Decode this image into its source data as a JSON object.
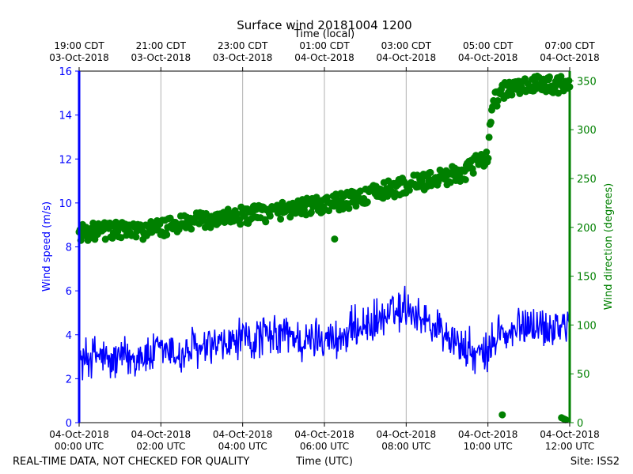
{
  "chart_data": {
    "type": "line",
    "title": "Surface wind 20181004 1200",
    "x_top_label": "Time (local)",
    "x_bottom_label": "Time (UTC)",
    "y_left_label": "Wind speed (m/s)",
    "y_right_label": "Wind direction (degrees)",
    "y_left_lim": [
      0,
      16
    ],
    "y_right_lim": [
      0,
      360
    ],
    "x_lim_hours": [
      0,
      12
    ],
    "y_left_ticks": [
      "0",
      "2",
      "4",
      "6",
      "8",
      "10",
      "12",
      "14",
      "16"
    ],
    "y_right_ticks": [
      "0",
      "50",
      "100",
      "150",
      "200",
      "250",
      "300",
      "350"
    ],
    "x_bottom_ticks": [
      {
        "date": "04-Oct-2018",
        "time": "00:00 UTC"
      },
      {
        "date": "04-Oct-2018",
        "time": "02:00 UTC"
      },
      {
        "date": "04-Oct-2018",
        "time": "04:00 UTC"
      },
      {
        "date": "04-Oct-2018",
        "time": "06:00 UTC"
      },
      {
        "date": "04-Oct-2018",
        "time": "08:00 UTC"
      },
      {
        "date": "04-Oct-2018",
        "time": "10:00 UTC"
      },
      {
        "date": "04-Oct-2018",
        "time": "12:00 UTC"
      }
    ],
    "x_top_ticks": [
      {
        "time": "19:00 CDT",
        "date": "03-Oct-2018"
      },
      {
        "time": "21:00 CDT",
        "date": "03-Oct-2018"
      },
      {
        "time": "23:00 CDT",
        "date": "03-Oct-2018"
      },
      {
        "time": "01:00 CDT",
        "date": "04-Oct-2018"
      },
      {
        "time": "03:00 CDT",
        "date": "04-Oct-2018"
      },
      {
        "time": "05:00 CDT",
        "date": "04-Oct-2018"
      },
      {
        "time": "07:00 CDT",
        "date": "04-Oct-2018"
      }
    ],
    "grid": "vertical",
    "series": [
      {
        "name": "Wind speed",
        "axis": "left",
        "style": "line",
        "color": "#0000ff",
        "points": [
          [
            0,
            2.8
          ],
          [
            0.25,
            3.0
          ],
          [
            0.5,
            3.1
          ],
          [
            0.75,
            2.7
          ],
          [
            1.0,
            3.0
          ],
          [
            1.25,
            2.9
          ],
          [
            1.5,
            3.1
          ],
          [
            1.75,
            3.0
          ],
          [
            2.0,
            3.3
          ],
          [
            2.25,
            3.2
          ],
          [
            2.5,
            3.0
          ],
          [
            2.75,
            3.4
          ],
          [
            3.0,
            3.2
          ],
          [
            3.25,
            3.5
          ],
          [
            3.5,
            3.4
          ],
          [
            3.75,
            3.6
          ],
          [
            4.0,
            3.8
          ],
          [
            4.25,
            3.7
          ],
          [
            4.5,
            4.0
          ],
          [
            4.75,
            3.8
          ],
          [
            5.0,
            4.1
          ],
          [
            5.25,
            3.9
          ],
          [
            5.5,
            3.6
          ],
          [
            5.75,
            3.8
          ],
          [
            6.0,
            4.0
          ],
          [
            6.25,
            3.7
          ],
          [
            6.5,
            4.0
          ],
          [
            6.75,
            4.3
          ],
          [
            7.0,
            4.4
          ],
          [
            7.25,
            4.6
          ],
          [
            7.5,
            4.8
          ],
          [
            7.75,
            5.0
          ],
          [
            8.0,
            5.3
          ],
          [
            8.25,
            5.0
          ],
          [
            8.5,
            4.6
          ],
          [
            8.75,
            4.3
          ],
          [
            9.0,
            4.0
          ],
          [
            9.25,
            3.6
          ],
          [
            9.5,
            3.3
          ],
          [
            9.75,
            3.0
          ],
          [
            10.0,
            3.1
          ],
          [
            10.25,
            4.2
          ],
          [
            10.5,
            3.8
          ],
          [
            10.75,
            4.3
          ],
          [
            11.0,
            4.6
          ],
          [
            11.25,
            4.4
          ],
          [
            11.5,
            4.3
          ],
          [
            11.75,
            4.5
          ],
          [
            12.0,
            4.4
          ]
        ],
        "noise_amplitude": 1.2
      },
      {
        "name": "Wind direction",
        "axis": "right",
        "style": "markers",
        "color": "#008000",
        "points": [
          [
            0,
            195
          ],
          [
            0.5,
            196
          ],
          [
            1.0,
            197
          ],
          [
            1.5,
            196
          ],
          [
            2.0,
            199
          ],
          [
            2.5,
            203
          ],
          [
            3.0,
            207
          ],
          [
            3.5,
            210
          ],
          [
            4.0,
            212
          ],
          [
            4.5,
            214
          ],
          [
            5.0,
            218
          ],
          [
            5.5,
            221
          ],
          [
            6.0,
            223
          ],
          [
            6.5,
            227
          ],
          [
            7.0,
            232
          ],
          [
            7.5,
            238
          ],
          [
            8.0,
            243
          ],
          [
            8.5,
            248
          ],
          [
            9.0,
            252
          ],
          [
            9.5,
            258
          ],
          [
            10.0,
            275
          ],
          [
            10.1,
            325
          ],
          [
            10.25,
            335
          ],
          [
            10.5,
            342
          ],
          [
            11.0,
            345
          ],
          [
            11.5,
            347
          ],
          [
            12.0,
            345
          ]
        ],
        "noise_amplitude": 9,
        "outliers": [
          [
            6.25,
            188
          ],
          [
            10.35,
            8
          ],
          [
            11.8,
            5
          ],
          [
            11.85,
            4
          ],
          [
            11.9,
            3
          ]
        ]
      }
    ]
  },
  "footer": {
    "left_note": "REAL-TIME DATA, NOT CHECKED FOR QUALITY",
    "site": "Site: ISS2"
  },
  "colors": {
    "speed": "#0000ff",
    "direction": "#008000",
    "grid": "#b0b0b0",
    "axis": "#000000"
  }
}
